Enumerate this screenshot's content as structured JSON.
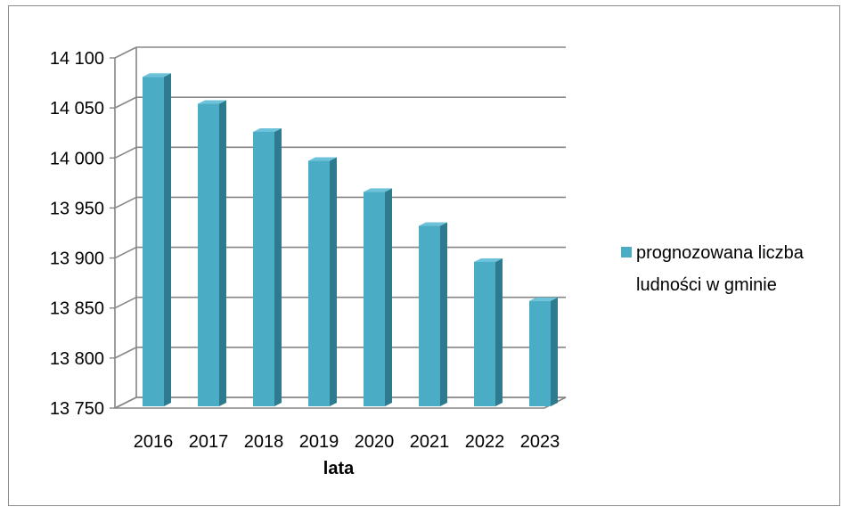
{
  "chart_data": {
    "type": "bar",
    "categories": [
      "2016",
      "2017",
      "2018",
      "2019",
      "2020",
      "2021",
      "2022",
      "2023"
    ],
    "series": [
      {
        "name": "prognozowana liczba ludności w gminie",
        "values": [
          14090,
          14063,
          14035,
          14006,
          13975,
          13941,
          13905,
          13866
        ]
      }
    ],
    "title": "",
    "xlabel": "lata",
    "ylabel": "",
    "ylim": [
      13750,
      14100
    ],
    "yticks": [
      13750,
      13800,
      13850,
      13900,
      13950,
      14000,
      14050,
      14100
    ],
    "ytick_labels": [
      "13 750",
      "13 800",
      "13 850",
      "13 900",
      "13 950",
      "14 000",
      "14 050",
      "14 100"
    ],
    "grid": true,
    "legend_position": "right",
    "style": "3d-column",
    "colors": {
      "bar_front": "#4bacc6",
      "bar_side": "#2e7b8f",
      "bar_top": "#6cc2d8",
      "grid": "#868686",
      "axis": "#868686"
    }
  },
  "legend": {
    "line1": "prognozowana liczba",
    "line2": "ludności w gminie"
  }
}
